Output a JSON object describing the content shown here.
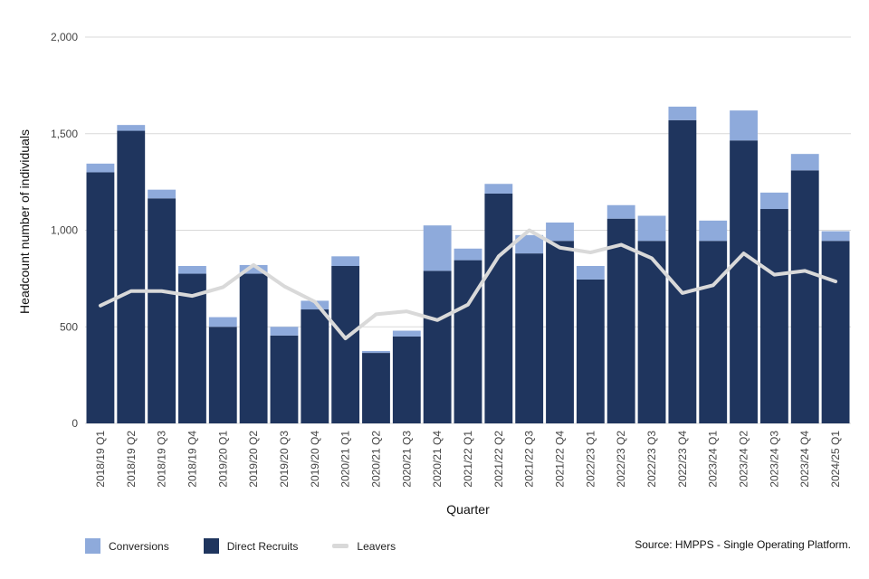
{
  "chart_data": {
    "type": "bar",
    "stacked": true,
    "categories": [
      "2018/19 Q1",
      "2018/19 Q2",
      "2018/19 Q3",
      "2018/19 Q4",
      "2019/20 Q1",
      "2019/20 Q2",
      "2019/20 Q3",
      "2019/20 Q4",
      "2020/21 Q1",
      "2020/21 Q2",
      "2020/21 Q3",
      "2020/21 Q4",
      "2021/22 Q1",
      "2021/22 Q2",
      "2021/22 Q3",
      "2021/22 Q4",
      "2022/23 Q1",
      "2022/23 Q2",
      "2022/23 Q3",
      "2022/23 Q4",
      "2023/24 Q1",
      "2023/24 Q2",
      "2023/24 Q3",
      "2023/24 Q4",
      "2024/25 Q1"
    ],
    "series": [
      {
        "name": "Direct Recruits",
        "color": "#1f355e",
        "values": [
          1300,
          1515,
          1165,
          775,
          500,
          775,
          455,
          590,
          815,
          365,
          450,
          790,
          845,
          1190,
          880,
          945,
          745,
          1060,
          945,
          1570,
          945,
          1465,
          1110,
          1310,
          945
        ]
      },
      {
        "name": "Conversions",
        "color": "#8eaadb",
        "values": [
          45,
          30,
          45,
          40,
          50,
          45,
          45,
          45,
          50,
          10,
          30,
          235,
          60,
          50,
          95,
          95,
          70,
          70,
          130,
          70,
          105,
          155,
          85,
          85,
          50
        ]
      },
      {
        "name": "Leavers",
        "color": "#d9d9d9",
        "type": "line",
        "values": [
          610,
          685,
          685,
          660,
          705,
          820,
          710,
          630,
          440,
          565,
          580,
          535,
          615,
          865,
          1000,
          910,
          885,
          925,
          855,
          675,
          715,
          880,
          770,
          790,
          735
        ]
      }
    ],
    "xlabel": "Quarter",
    "ylabel": "Headcount number of individuals",
    "ylim": [
      0,
      2000
    ],
    "yticks": [
      0,
      500,
      1000,
      1500,
      2000
    ],
    "ytick_labels": [
      "0",
      "500",
      "1,000",
      "1,500",
      "2,000"
    ],
    "grid": true,
    "legend_placement": "bottom-left"
  },
  "legend": {
    "conversions": "Conversions",
    "direct_recruits": "Direct Recruits",
    "leavers": "Leavers"
  },
  "source": "Source: HMPPS - Single Operating Platform."
}
